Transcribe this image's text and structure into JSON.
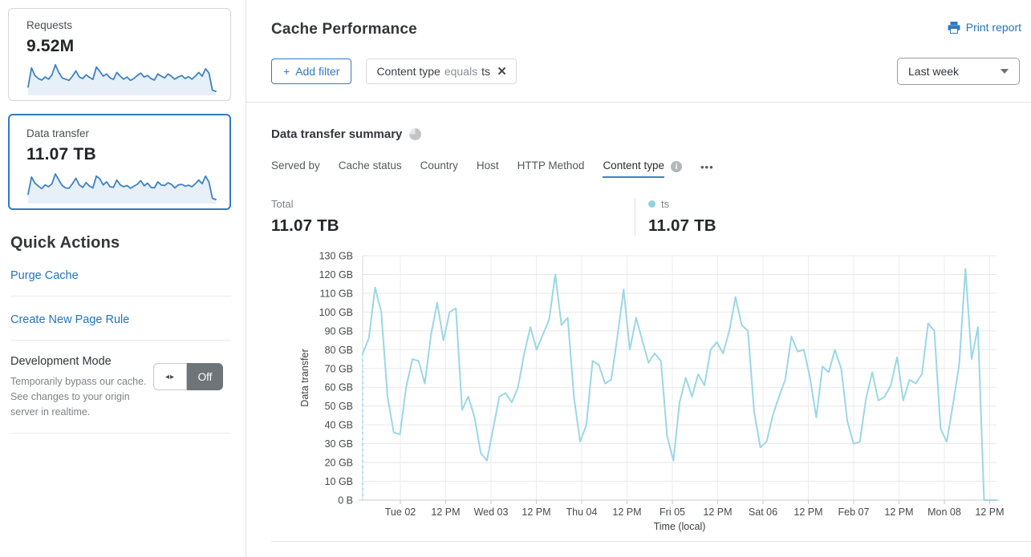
{
  "colors": {
    "accent_blue": "#2f7bbf",
    "link_blue": "#2273c2",
    "spark_stroke": "#3d82c4",
    "spark_fill": "#e7f0f9",
    "chart_line": "#9bd7e5",
    "legend_dot": "#8ed2e2"
  },
  "sidebar": {
    "requests_card": {
      "label": "Requests",
      "value": "9.52M"
    },
    "data_transfer_card": {
      "label": "Data transfer",
      "value": "11.07 TB"
    },
    "sparkline_requests": [
      22,
      85,
      60,
      50,
      45,
      55,
      48,
      62,
      95,
      70,
      52,
      48,
      44,
      58,
      75,
      55,
      50,
      62,
      54,
      47,
      88,
      74,
      58,
      65,
      52,
      47,
      70,
      58,
      48,
      55,
      44,
      50,
      60,
      68,
      55,
      60,
      50,
      45,
      65,
      58,
      52,
      65,
      57,
      48,
      55,
      60,
      50,
      56,
      48,
      58,
      70,
      58,
      82,
      68,
      12,
      8
    ],
    "sparkline_data_transfer": [
      25,
      82,
      62,
      52,
      44,
      56,
      50,
      60,
      92,
      72,
      54,
      46,
      45,
      60,
      78,
      56,
      48,
      64,
      52,
      46,
      85,
      76,
      56,
      66,
      50,
      48,
      72,
      56,
      50,
      54,
      45,
      52,
      58,
      70,
      53,
      62,
      48,
      46,
      66,
      56,
      54,
      63,
      58,
      46,
      56,
      58,
      52,
      55,
      50,
      60,
      72,
      60,
      85,
      65,
      12,
      8
    ],
    "quick_actions_title": "Quick Actions",
    "purge_cache_label": "Purge Cache",
    "create_page_rule_label": "Create New Page Rule",
    "development_mode": {
      "title": "Development Mode",
      "description": "Temporarily bypass our cache. See changes to your origin server in realtime.",
      "arrows_glyph": "◂▸",
      "state": "Off"
    }
  },
  "header": {
    "title": "Cache Performance",
    "print_report_label": "Print report"
  },
  "filters": {
    "add_filter_plus": "+",
    "add_filter_label": "Add filter",
    "chip": {
      "field": "Content type",
      "operator": "equals",
      "value": "ts",
      "close_glyph": "×"
    },
    "time_range": "Last week"
  },
  "summary": {
    "title": "Data transfer summary",
    "tabs": [
      {
        "label": "Served by",
        "active": false
      },
      {
        "label": "Cache status",
        "active": false
      },
      {
        "label": "Country",
        "active": false
      },
      {
        "label": "Host",
        "active": false
      },
      {
        "label": "HTTP Method",
        "active": false
      },
      {
        "label": "Content type",
        "active": true,
        "has_info": true
      }
    ],
    "info_glyph": "i",
    "more_menu": "•••",
    "total_label": "Total",
    "total_value": "11.07 TB",
    "legend": {
      "name": "ts",
      "value": "11.07 TB"
    }
  },
  "chart_data": {
    "type": "line",
    "title": "Data transfer summary",
    "series_name": "ts",
    "unit": "GB",
    "ylabel": "Data transfer",
    "xlabel": "Time (local)",
    "ylim": [
      0,
      130
    ],
    "grid": true,
    "start_dashed": true,
    "y_ticks": [
      "0 B",
      "10 GB",
      "20 GB",
      "30 GB",
      "40 GB",
      "50 GB",
      "60 GB",
      "70 GB",
      "80 GB",
      "90 GB",
      "100 GB",
      "110 GB",
      "120 GB",
      "130 GB"
    ],
    "x_ticks": [
      "Tue 02",
      "12 PM",
      "Wed 03",
      "12 PM",
      "Thu 04",
      "12 PM",
      "Fri 05",
      "12 PM",
      "Sat 06",
      "12 PM",
      "Feb 07",
      "12 PM",
      "Mon 08",
      "12 PM"
    ],
    "values_gb": [
      78,
      86,
      113,
      100,
      55,
      36,
      35,
      60,
      75,
      74,
      62,
      88,
      105,
      85,
      100,
      102,
      48,
      55,
      44,
      25,
      21,
      38,
      55,
      57,
      52,
      60,
      78,
      92,
      80,
      88,
      96,
      120,
      93,
      97,
      55,
      31,
      40,
      74,
      72,
      62,
      64,
      87,
      112,
      80,
      97,
      85,
      73,
      78,
      74,
      34,
      21,
      52,
      65,
      55,
      67,
      61,
      80,
      84,
      78,
      90,
      108,
      93,
      90,
      47,
      28,
      31,
      45,
      55,
      64,
      87,
      79,
      80,
      65,
      44,
      71,
      68,
      80,
      70,
      42,
      30,
      31,
      54,
      68,
      53,
      55,
      61,
      76,
      53,
      64,
      62,
      67,
      94,
      90,
      38,
      31,
      51,
      72,
      123,
      75,
      92,
      0,
      0,
      0
    ]
  }
}
